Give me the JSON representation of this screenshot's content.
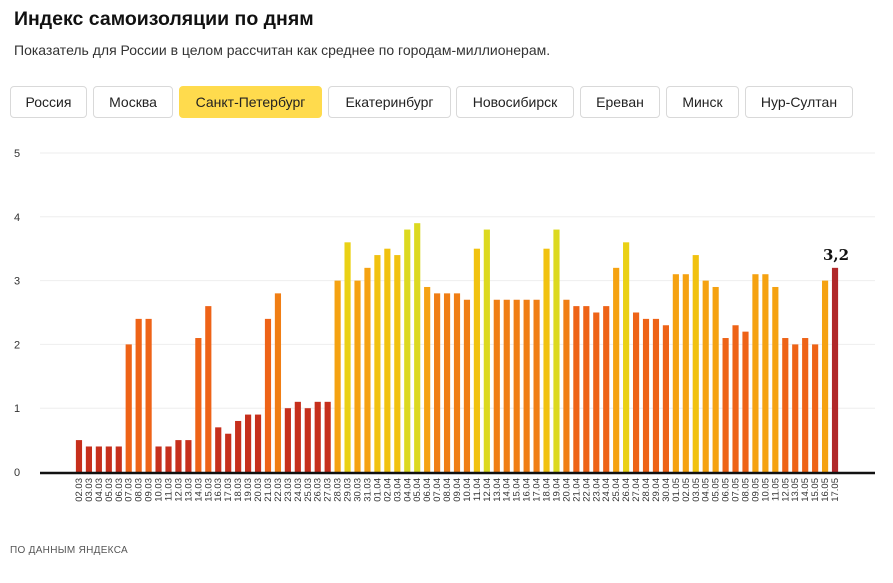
{
  "title": "Индекс самоизоляции по дням",
  "subtitle": "Показатель для России в целом рассчитан как среднее по городам-миллионерам.",
  "tabs": [
    {
      "label": "Россия",
      "active": false
    },
    {
      "label": "Москва",
      "active": false
    },
    {
      "label": "Санкт-Петербург",
      "active": true
    },
    {
      "label": "Екатеринбург",
      "active": false
    },
    {
      "label": "Новосибирск",
      "active": false
    },
    {
      "label": "Ереван",
      "active": false
    },
    {
      "label": "Минск",
      "active": false
    },
    {
      "label": "Нур-Султан",
      "active": false
    }
  ],
  "source": "ПО ДАННЫМ ЯНДЕКСА",
  "colors": {
    "active_tab": "#ffdb4d",
    "last_bar": "#b0282a"
  },
  "chart_data": {
    "type": "bar",
    "title": "",
    "xlabel": "",
    "ylabel": "",
    "ylim": [
      0,
      5
    ],
    "yticks": [
      0,
      1,
      2,
      3,
      4,
      5
    ],
    "grid": true,
    "categories": [
      "02.03",
      "03.03",
      "04.03",
      "05.03",
      "06.03",
      "07.03",
      "08.03",
      "09.03",
      "10.03",
      "11.03",
      "12.03",
      "13.03",
      "14.03",
      "15.03",
      "16.03",
      "17.03",
      "18.03",
      "19.03",
      "20.03",
      "21.03",
      "22.03",
      "23.03",
      "24.03",
      "25.03",
      "26.03",
      "27.03",
      "28.03",
      "29.03",
      "30.03",
      "31.03",
      "01.04",
      "02.04",
      "03.04",
      "04.04",
      "05.04",
      "06.04",
      "07.04",
      "08.04",
      "09.04",
      "10.04",
      "11.04",
      "12.04",
      "13.04",
      "14.04",
      "15.04",
      "16.04",
      "17.04",
      "18.04",
      "19.04",
      "20.04",
      "21.04",
      "22.04",
      "23.04",
      "24.04",
      "25.04",
      "26.04",
      "27.04",
      "28.04",
      "29.04",
      "30.04",
      "01.05",
      "02.05",
      "03.05",
      "04.05",
      "05.05",
      "06.05",
      "07.05",
      "08.05",
      "09.05",
      "10.05",
      "11.05",
      "12.05",
      "13.05",
      "14.05",
      "15.05",
      "16.05",
      "17.05"
    ],
    "values": [
      0.5,
      0.4,
      0.4,
      0.4,
      0.4,
      2.0,
      2.4,
      2.4,
      0.4,
      0.4,
      0.5,
      0.5,
      2.1,
      2.6,
      0.7,
      0.6,
      0.8,
      0.9,
      0.9,
      2.4,
      2.8,
      1.0,
      1.1,
      1.0,
      1.1,
      1.1,
      3.0,
      3.6,
      3.0,
      3.2,
      3.4,
      3.5,
      3.4,
      3.8,
      3.9,
      2.9,
      2.8,
      2.8,
      2.8,
      2.7,
      3.5,
      3.8,
      2.7,
      2.7,
      2.7,
      2.7,
      2.7,
      3.5,
      3.8,
      2.7,
      2.6,
      2.6,
      2.5,
      2.6,
      3.2,
      3.6,
      2.5,
      2.4,
      2.4,
      2.3,
      3.1,
      3.1,
      3.4,
      3.0,
      2.9,
      2.1,
      2.3,
      2.2,
      3.1,
      3.1,
      2.9,
      2.1,
      2.0,
      2.1,
      2.0,
      3.0,
      3.2
    ],
    "highlight": {
      "index": 76,
      "label": "3,2"
    }
  }
}
